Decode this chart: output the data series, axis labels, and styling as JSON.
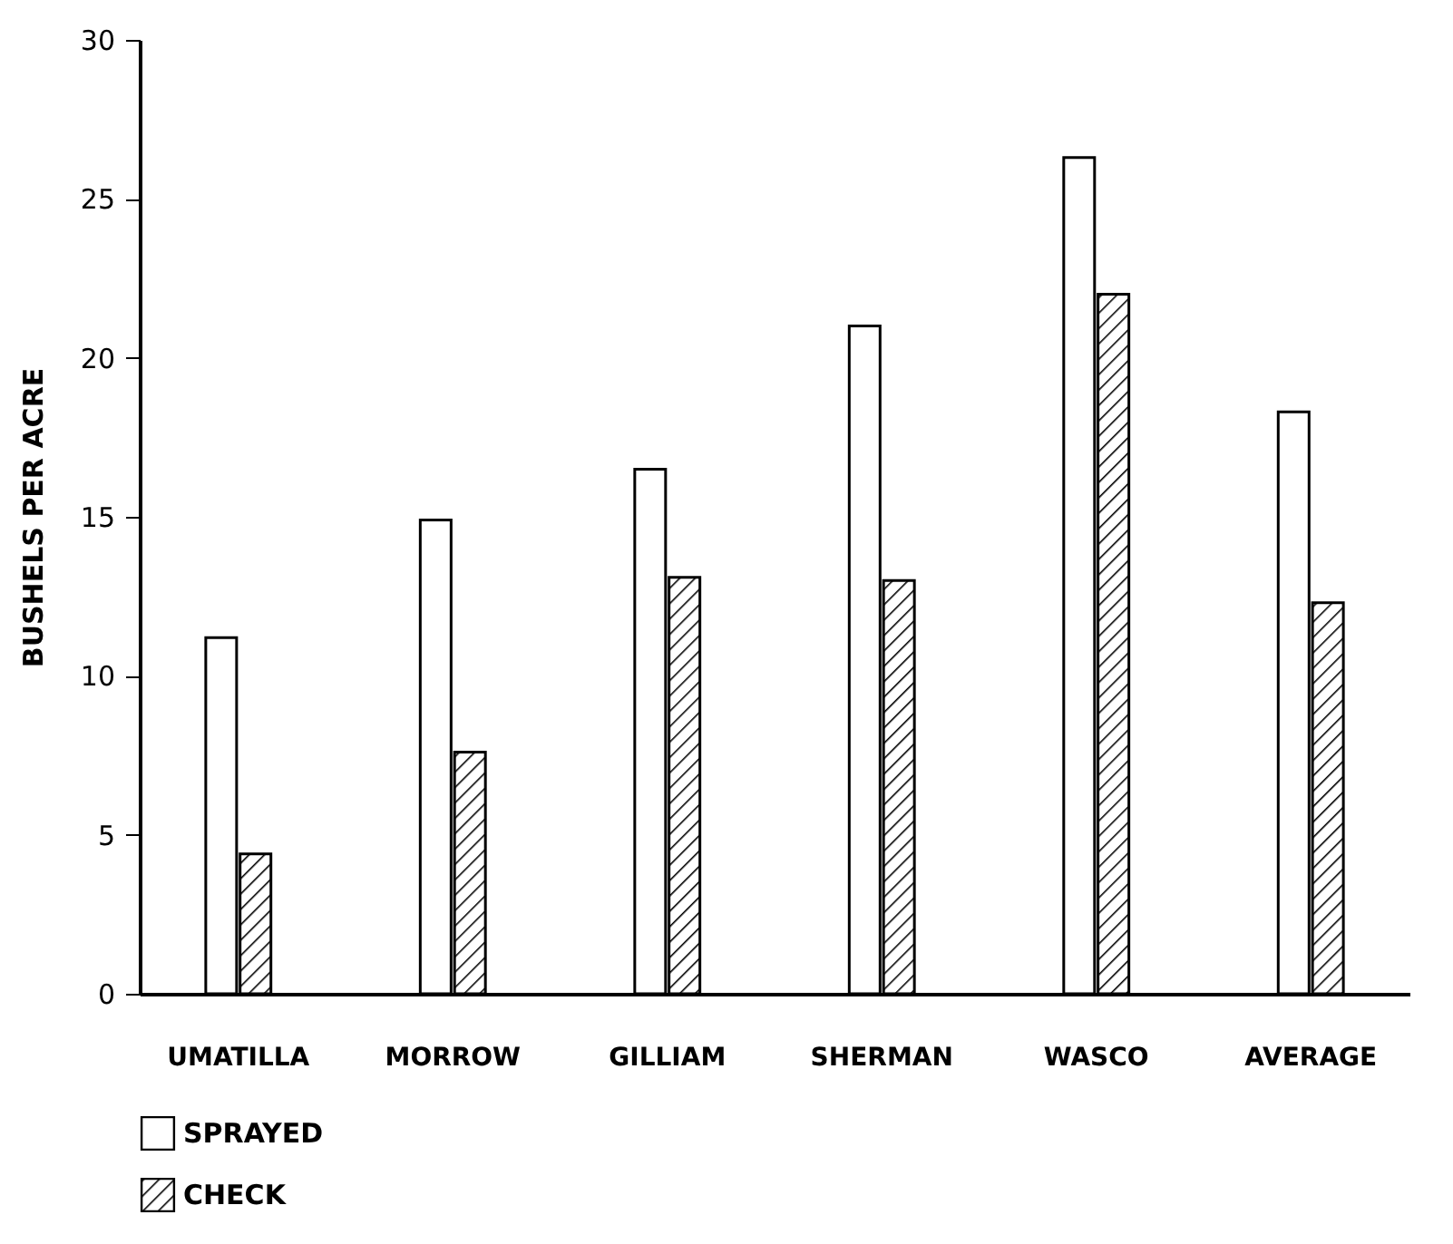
{
  "chart_data": {
    "type": "bar",
    "ylabel": "BUSHELS PER ACRE",
    "categories": [
      "UMATILLA",
      "MORROW",
      "GILLIAM",
      "SHERMAN",
      "WASCO",
      "AVERAGE"
    ],
    "series": [
      {
        "name": "SPRAYED",
        "color": "#ffffff",
        "values": [
          11.2,
          14.9,
          16.5,
          21.0,
          26.3,
          18.3
        ]
      },
      {
        "name": "CHECK",
        "color": "#000000",
        "values": [
          4.4,
          7.6,
          13.1,
          13.0,
          22.0,
          12.3
        ]
      }
    ],
    "ylim": [
      0,
      30
    ],
    "yticks": [
      0,
      5,
      10,
      15,
      20,
      25,
      30
    ],
    "grid": false,
    "legend": "bottom"
  }
}
